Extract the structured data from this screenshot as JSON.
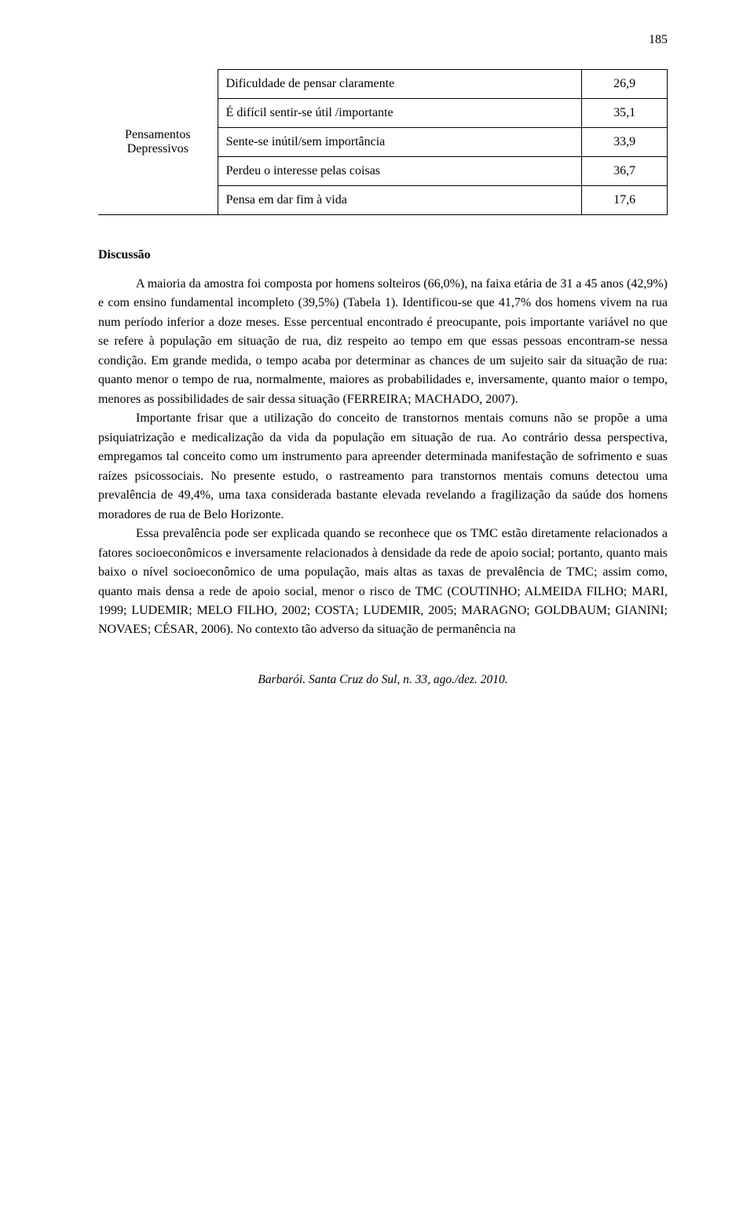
{
  "page_number": "185",
  "table": {
    "group_label_line1": "Pensamentos",
    "group_label_line2": "Depressivos",
    "rows": [
      {
        "desc": "Dificuldade de pensar claramente",
        "val": "26,9"
      },
      {
        "desc": "É difícil sentir-se útil /importante",
        "val": "35,1"
      },
      {
        "desc": "Sente-se inútil/sem importância",
        "val": "33,9"
      },
      {
        "desc": "Perdeu o interesse pelas coisas",
        "val": "36,7"
      },
      {
        "desc": "Pensa em dar fim à vida",
        "val": "17,6"
      }
    ]
  },
  "heading": "Discussão",
  "paragraphs": {
    "p1": "A maioria da amostra foi composta por homens solteiros (66,0%), na faixa etária de 31 a 45 anos (42,9%) e com ensino fundamental incompleto (39,5%) (Tabela 1). Identificou-se que 41,7% dos homens vivem na rua num período inferior a doze meses. Esse percentual encontrado é preocupante, pois importante variável no que se refere à população em situação de rua, diz respeito ao tempo em que essas pessoas encontram-se nessa condição. Em grande medida, o tempo acaba por determinar as chances de um sujeito sair da situação de rua: quanto menor o tempo de rua, normalmente, maiores as probabilidades e, inversamente, quanto maior o tempo, menores as possibilidades de sair dessa situação (FERREIRA; MACHADO, 2007).",
    "p2": "Importante frisar que a utilização do conceito de transtornos mentais comuns não se propõe a uma psiquiatrização e medicalização da vida da população em situação de rua. Ao contrário dessa perspectiva, empregamos tal conceito como um instrumento para apreender determinada manifestação de sofrimento e suas raízes psicossociais. No presente estudo, o rastreamento para transtornos mentais comuns detectou uma prevalência de 49,4%, uma taxa considerada bastante elevada revelando a fragilização da saúde dos homens moradores de rua de Belo Horizonte.",
    "p3": "Essa prevalência pode ser explicada quando se reconhece que os TMC estão diretamente relacionados a fatores socioeconômicos e inversamente relacionados à densidade da rede de apoio social; portanto, quanto mais baixo o nível socioeconômico de uma população, mais altas as taxas de prevalência de TMC; assim como, quanto mais densa a rede de apoio social, menor o risco de TMC (COUTINHO; ALMEIDA FILHO; MARI, 1999; LUDEMIR; MELO FILHO, 2002; COSTA; LUDEMIR, 2005; MARAGNO; GOLDBAUM; GIANINI; NOVAES; CÉSAR, 2006). No contexto tão adverso da situação de permanência na"
  },
  "footer": "Barbarói. Santa Cruz do Sul, n. 33, ago./dez. 2010."
}
